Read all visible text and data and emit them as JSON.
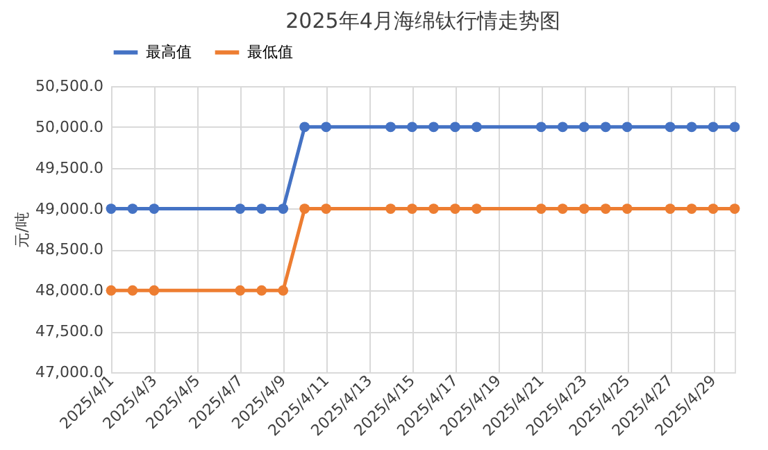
{
  "chart_data": {
    "type": "line",
    "title": "2025年4月海绵钛行情走势图",
    "ylabel": "元/吨",
    "x": [
      "2025-04-01",
      "2025-04-02",
      "2025-04-03",
      "2025-04-07",
      "2025-04-08",
      "2025-04-09",
      "2025-04-10",
      "2025-04-11",
      "2025-04-14",
      "2025-04-15",
      "2025-04-16",
      "2025-04-17",
      "2025-04-18",
      "2025-04-21",
      "2025-04-22",
      "2025-04-23",
      "2025-04-24",
      "2025-04-25",
      "2025-04-27",
      "2025-04-28",
      "2025-04-29",
      "2025-04-30"
    ],
    "series": [
      {
        "name": "最高值",
        "color": "#4472c4",
        "values": [
          49000,
          49000,
          49000,
          49000,
          49000,
          49000,
          50000,
          50000,
          50000,
          50000,
          50000,
          50000,
          50000,
          50000,
          50000,
          50000,
          50000,
          50000,
          50000,
          50000,
          50000,
          50000
        ]
      },
      {
        "name": "最低值",
        "color": "#ed7d31",
        "values": [
          48000,
          48000,
          48000,
          48000,
          48000,
          48000,
          49000,
          49000,
          49000,
          49000,
          49000,
          49000,
          49000,
          49000,
          49000,
          49000,
          49000,
          49000,
          49000,
          49000,
          49000,
          49000
        ]
      }
    ],
    "xlim": [
      "2025-04-01",
      "2025-04-30"
    ],
    "xticks": [
      {
        "value": "2025-04-01",
        "label": "2025/4/1"
      },
      {
        "value": "2025-04-03",
        "label": "2025/4/3"
      },
      {
        "value": "2025-04-05",
        "label": "2025/4/5"
      },
      {
        "value": "2025-04-07",
        "label": "2025/4/7"
      },
      {
        "value": "2025-04-09",
        "label": "2025/4/9"
      },
      {
        "value": "2025-04-11",
        "label": "2025/4/11"
      },
      {
        "value": "2025-04-13",
        "label": "2025/4/13"
      },
      {
        "value": "2025-04-15",
        "label": "2025/4/15"
      },
      {
        "value": "2025-04-17",
        "label": "2025/4/17"
      },
      {
        "value": "2025-04-19",
        "label": "2025/4/19"
      },
      {
        "value": "2025-04-21",
        "label": "2025/4/21"
      },
      {
        "value": "2025-04-23",
        "label": "2025/4/23"
      },
      {
        "value": "2025-04-25",
        "label": "2025/4/25"
      },
      {
        "value": "2025-04-27",
        "label": "2025/4/27"
      },
      {
        "value": "2025-04-29",
        "label": "2025/4/29"
      }
    ],
    "ylim": [
      47000,
      50500
    ],
    "yticks": [
      {
        "value": 47000,
        "label": "47,000.0"
      },
      {
        "value": 47500,
        "label": "47,500.0"
      },
      {
        "value": 48000,
        "label": "48,000.0"
      },
      {
        "value": 48500,
        "label": "48,500.0"
      },
      {
        "value": 49000,
        "label": "49,000.0"
      },
      {
        "value": 49500,
        "label": "49,500.0"
      },
      {
        "value": 50000,
        "label": "50,000.0"
      },
      {
        "value": 50500,
        "label": "50,500.0"
      }
    ],
    "grid": true,
    "legend": "top",
    "marker": "circle",
    "line_style": "solid"
  }
}
